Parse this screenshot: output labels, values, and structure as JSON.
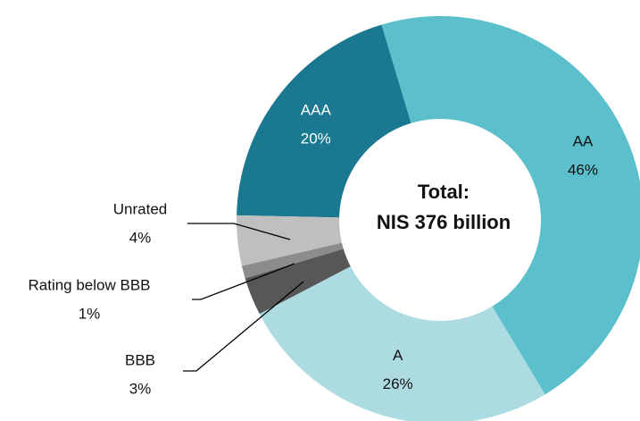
{
  "chart_data": {
    "type": "donut",
    "categories": [
      "AA",
      "A",
      "BBB",
      "Rating below BBB",
      "Unrated",
      "AAA"
    ],
    "values": [
      46,
      26,
      3,
      1,
      4,
      20
    ],
    "value_labels": [
      "46%",
      "26%",
      "3%",
      "1%",
      "4%",
      "20%"
    ],
    "colors": [
      "#5bbfcc",
      "#acdce2",
      "#575757",
      "#8c8c8c",
      "#bfbfbf",
      "#1a7890"
    ],
    "center_text": [
      "Total:",
      "NIS 376 billion"
    ]
  }
}
